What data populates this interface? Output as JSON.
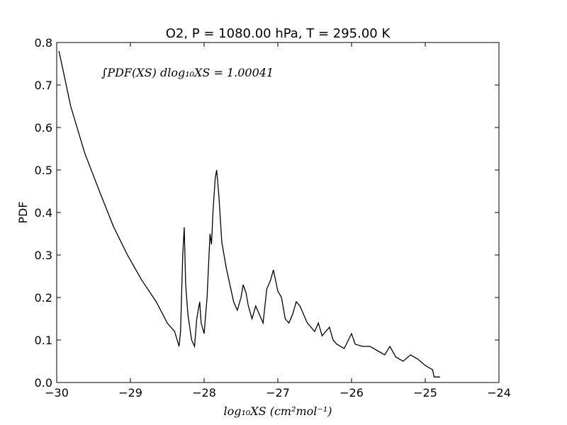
{
  "chart_data": {
    "type": "line",
    "title": "O2, P = 1080.00 hPa, T = 295.00 K",
    "xlabel": "log₁₀XS (cm²mol⁻¹)",
    "ylabel": "PDF",
    "annotation": "∫PDF(XS) dlog₁₀XS = 1.00041",
    "xlim": [
      -30,
      -24
    ],
    "ylim": [
      0,
      0.8
    ],
    "xticks": [
      {
        "value": -30,
        "label": "−30"
      },
      {
        "value": -29,
        "label": "−29"
      },
      {
        "value": -28,
        "label": "−28"
      },
      {
        "value": -27,
        "label": "−27"
      },
      {
        "value": -26,
        "label": "−26"
      },
      {
        "value": -25,
        "label": "−25"
      },
      {
        "value": -24,
        "label": "−24"
      }
    ],
    "yticks": [
      {
        "value": 0,
        "label": "0.0"
      },
      0.1,
      0.2,
      0.3,
      0.4,
      0.5,
      0.6,
      0.7,
      0.8
    ],
    "series": [
      {
        "color": "#000000",
        "x": [
          -29.97,
          -29.92,
          -29.81,
          -29.62,
          -29.42,
          -29.23,
          -29.04,
          -28.85,
          -28.65,
          -28.5,
          -28.4,
          -28.34,
          -28.32,
          -28.29,
          -28.27,
          -28.25,
          -28.22,
          -28.17,
          -28.13,
          -28.1,
          -28.06,
          -28.04,
          -28.0,
          -27.96,
          -27.92,
          -27.9,
          -27.88,
          -27.85,
          -27.83,
          -27.8,
          -27.76,
          -27.7,
          -27.6,
          -27.55,
          -27.5,
          -27.47,
          -27.43,
          -27.4,
          -27.35,
          -27.3,
          -27.25,
          -27.2,
          -27.15,
          -27.1,
          -27.06,
          -27.0,
          -26.95,
          -26.9,
          -26.85,
          -26.8,
          -26.75,
          -26.7,
          -26.6,
          -26.5,
          -26.45,
          -26.4,
          -26.3,
          -26.25,
          -26.2,
          -26.1,
          -26.0,
          -25.95,
          -25.85,
          -25.75,
          -25.6,
          -25.55,
          -25.48,
          -25.4,
          -25.3,
          -25.2,
          -25.1,
          -25.0,
          -24.9,
          -24.88,
          -24.8
        ],
        "values": [
          0.78,
          0.74,
          0.65,
          0.54,
          0.45,
          0.367,
          0.3,
          0.242,
          0.19,
          0.14,
          0.12,
          0.085,
          0.12,
          0.3,
          0.365,
          0.23,
          0.16,
          0.1,
          0.085,
          0.15,
          0.19,
          0.14,
          0.115,
          0.2,
          0.35,
          0.325,
          0.4,
          0.48,
          0.5,
          0.44,
          0.33,
          0.27,
          0.19,
          0.17,
          0.2,
          0.23,
          0.21,
          0.18,
          0.15,
          0.18,
          0.16,
          0.14,
          0.22,
          0.24,
          0.265,
          0.215,
          0.2,
          0.15,
          0.14,
          0.16,
          0.19,
          0.18,
          0.14,
          0.12,
          0.14,
          0.11,
          0.13,
          0.1,
          0.09,
          0.08,
          0.115,
          0.09,
          0.085,
          0.085,
          0.07,
          0.065,
          0.085,
          0.06,
          0.05,
          0.065,
          0.055,
          0.04,
          0.03,
          0.013,
          0.013
        ]
      }
    ]
  }
}
